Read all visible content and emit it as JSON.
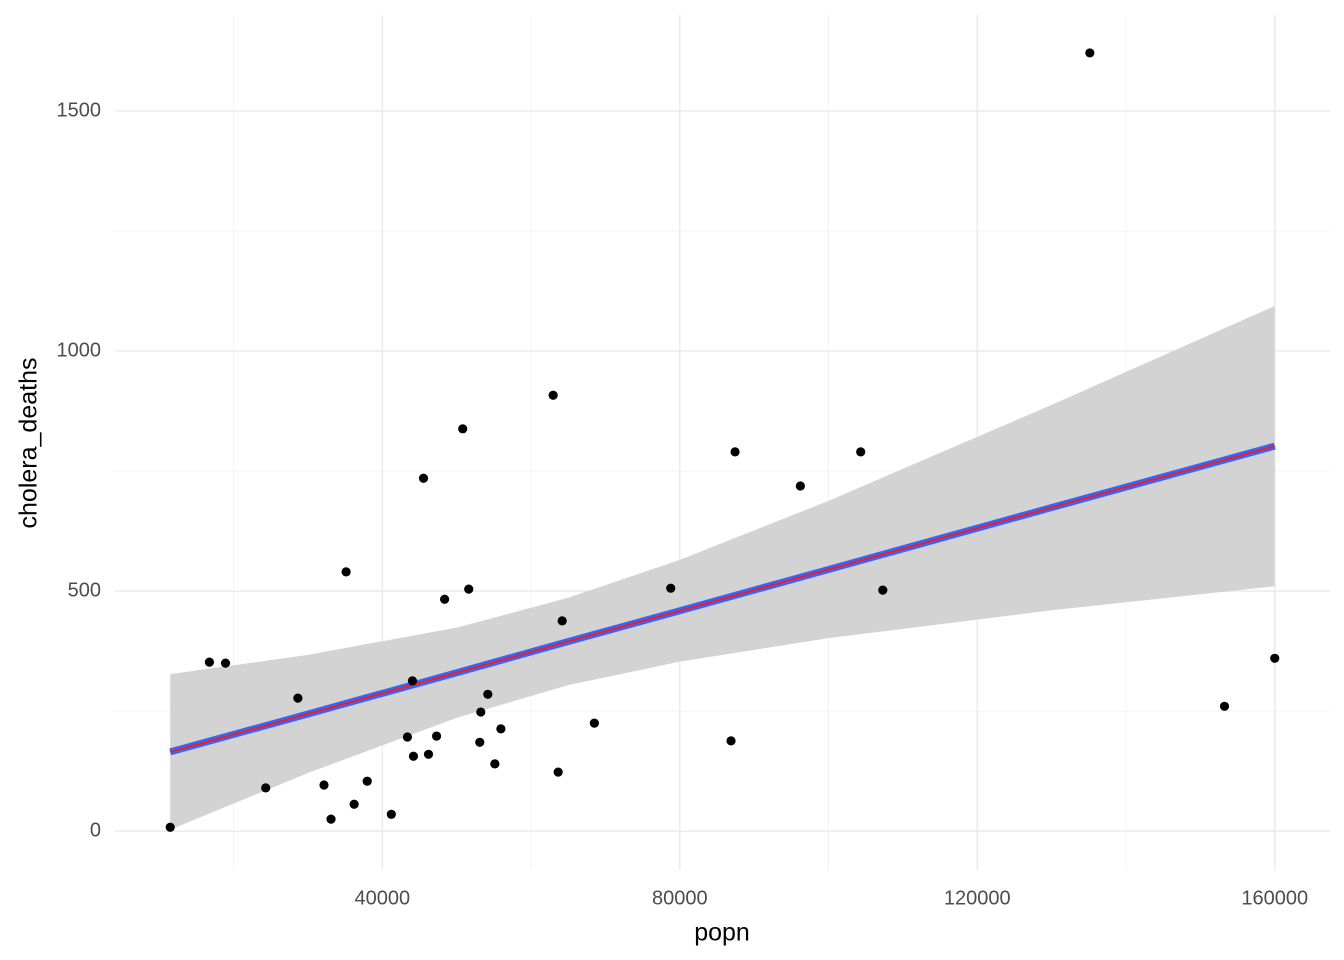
{
  "chart_data": {
    "type": "scatter",
    "x_label": "popn",
    "y_label": "cholera_deaths",
    "x": [
      11486,
      16757,
      18919,
      24324,
      28649,
      32162,
      33108,
      35135,
      36216,
      37973,
      41216,
      43378,
      44054,
      44189,
      45541,
      46216,
      47297,
      48378,
      50811,
      51622,
      53108,
      53243,
      54189,
      55135,
      55946,
      62973,
      63649,
      64189,
      68514,
      78784,
      86892,
      87432,
      96216,
      104324,
      107297,
      135135,
      153243,
      160000
    ],
    "values": [
      8,
      352,
      350,
      90,
      277,
      96,
      25,
      540,
      56,
      104,
      35,
      196,
      313,
      156,
      735,
      160,
      198,
      483,
      838,
      504,
      185,
      248,
      285,
      140,
      213,
      908,
      123,
      438,
      225,
      506,
      188,
      790,
      719,
      790,
      502,
      1621,
      260,
      360
    ],
    "color": "#000000",
    "fit": {
      "x": [
        11486,
        30000,
        50000,
        65000,
        80000,
        100000,
        130000,
        160000
      ],
      "values": [
        165,
        244,
        330,
        395,
        459,
        545,
        674,
        802
      ],
      "lower": [
        3,
        121,
        236,
        304,
        353,
        402,
        460,
        510
      ],
      "upper": [
        327,
        367,
        424,
        486,
        565,
        688,
        888,
        1094
      ],
      "color": "#e8202a",
      "outline_color": "#3366ff",
      "band_color": "#d3d3d3"
    },
    "xlim": [
      4060,
      167426
    ],
    "ylim": [
      -81,
      1700
    ],
    "xticks": [
      40000,
      80000,
      120000,
      160000
    ],
    "yticks": [
      0,
      500,
      1000,
      1500
    ],
    "x_minor_ticks": [
      20000,
      60000,
      100000,
      140000
    ],
    "y_minor_ticks": [
      250,
      750,
      1250
    ],
    "grid": true
  }
}
